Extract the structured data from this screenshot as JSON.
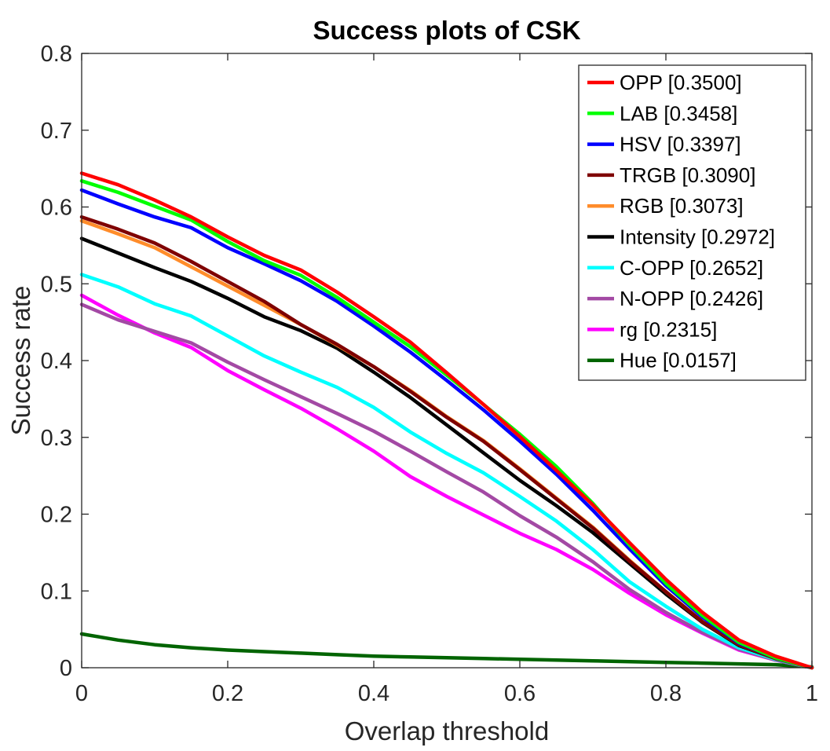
{
  "chart_data": {
    "type": "line",
    "title": "Success plots of CSK",
    "xlabel": "Overlap threshold",
    "ylabel": "Success rate",
    "xlim": [
      0,
      1
    ],
    "ylim": [
      0,
      0.8
    ],
    "xticks": [
      "0",
      "0.2",
      "0.4",
      "0.6",
      "0.8",
      "1"
    ],
    "yticks": [
      "0",
      "0.1",
      "0.2",
      "0.3",
      "0.4",
      "0.5",
      "0.6",
      "0.7",
      "0.8"
    ],
    "legend_position": "top-right",
    "grid": false,
    "x": [
      0,
      0.05,
      0.1,
      0.15,
      0.2,
      0.25,
      0.3,
      0.35,
      0.4,
      0.45,
      0.5,
      0.55,
      0.6,
      0.65,
      0.7,
      0.75,
      0.8,
      0.85,
      0.9,
      0.95,
      1.0
    ],
    "series": [
      {
        "name": "OPP [0.3500]",
        "color": "#ff0000",
        "values": [
          0.644,
          0.629,
          0.609,
          0.587,
          0.561,
          0.537,
          0.518,
          0.489,
          0.457,
          0.424,
          0.384,
          0.343,
          0.301,
          0.257,
          0.212,
          0.163,
          0.115,
          0.072,
          0.036,
          0.015,
          0.0
        ]
      },
      {
        "name": "LAB [0.3458]",
        "color": "#00ff00",
        "values": [
          0.634,
          0.619,
          0.601,
          0.583,
          0.555,
          0.53,
          0.511,
          0.482,
          0.45,
          0.418,
          0.381,
          0.343,
          0.304,
          0.262,
          0.214,
          0.16,
          0.11,
          0.068,
          0.033,
          0.013,
          0.0
        ]
      },
      {
        "name": "HSV [0.3397]",
        "color": "#0000ff",
        "values": [
          0.622,
          0.604,
          0.587,
          0.573,
          0.547,
          0.526,
          0.504,
          0.477,
          0.445,
          0.411,
          0.374,
          0.336,
          0.295,
          0.252,
          0.205,
          0.155,
          0.107,
          0.066,
          0.032,
          0.013,
          0.0
        ]
      },
      {
        "name": "TRGB [0.3090]",
        "color": "#7f0000",
        "values": [
          0.587,
          0.571,
          0.553,
          0.529,
          0.503,
          0.477,
          0.447,
          0.421,
          0.392,
          0.36,
          0.326,
          0.295,
          0.258,
          0.22,
          0.182,
          0.139,
          0.099,
          0.06,
          0.03,
          0.012,
          0.0
        ]
      },
      {
        "name": "RGB [0.3073]",
        "color": "#ff8c2a",
        "values": [
          0.582,
          0.565,
          0.547,
          0.522,
          0.497,
          0.472,
          0.447,
          0.42,
          0.392,
          0.361,
          0.327,
          0.296,
          0.259,
          0.221,
          0.183,
          0.14,
          0.099,
          0.06,
          0.03,
          0.012,
          0.0
        ]
      },
      {
        "name": "Intensity [0.2972]",
        "color": "#000000",
        "values": [
          0.559,
          0.54,
          0.521,
          0.503,
          0.481,
          0.457,
          0.439,
          0.416,
          0.385,
          0.352,
          0.316,
          0.28,
          0.244,
          0.211,
          0.176,
          0.136,
          0.096,
          0.059,
          0.029,
          0.012,
          0.0
        ]
      },
      {
        "name": "C-OPP [0.2652]",
        "color": "#00ffff",
        "values": [
          0.512,
          0.496,
          0.474,
          0.458,
          0.432,
          0.406,
          0.385,
          0.365,
          0.339,
          0.307,
          0.279,
          0.254,
          0.223,
          0.191,
          0.154,
          0.112,
          0.08,
          0.05,
          0.026,
          0.011,
          0.0
        ]
      },
      {
        "name": "N-OPP [0.2426]",
        "color": "#a349a4",
        "values": [
          0.473,
          0.453,
          0.438,
          0.423,
          0.398,
          0.375,
          0.353,
          0.331,
          0.308,
          0.282,
          0.255,
          0.229,
          0.198,
          0.17,
          0.138,
          0.102,
          0.072,
          0.046,
          0.024,
          0.01,
          0.0
        ]
      },
      {
        "name": "rg [0.2315]",
        "color": "#ff00ff",
        "values": [
          0.485,
          0.459,
          0.436,
          0.417,
          0.387,
          0.362,
          0.338,
          0.311,
          0.282,
          0.249,
          0.223,
          0.199,
          0.175,
          0.154,
          0.128,
          0.097,
          0.069,
          0.045,
          0.023,
          0.01,
          0.0
        ]
      },
      {
        "name": "Hue [0.0157]",
        "color": "#006400",
        "values": [
          0.044,
          0.036,
          0.03,
          0.026,
          0.023,
          0.021,
          0.019,
          0.017,
          0.015,
          0.014,
          0.013,
          0.012,
          0.011,
          0.01,
          0.009,
          0.008,
          0.007,
          0.006,
          0.005,
          0.004,
          0.001
        ]
      }
    ]
  }
}
